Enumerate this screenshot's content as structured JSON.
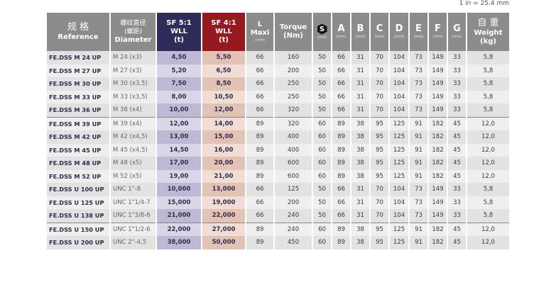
{
  "conversion_note": "1 in = 25.4 mm",
  "headers": {
    "reference_cn": "规 格",
    "reference": "Reference",
    "diameter_cn": "螺纹直径",
    "diameter_cn2": "(螺距)",
    "diameter": "Diameter",
    "sf5": [
      "SF 5:1",
      "WLL",
      "(t)"
    ],
    "sf4": [
      "SF 4:1",
      "WLL",
      "(t)"
    ],
    "l": "L",
    "l2": "Maxi",
    "mm": "(mm)",
    "torque": "Torque",
    "torque2": "(Nm)",
    "s": "S",
    "a": "A",
    "b": "B",
    "c": "C",
    "d": "D",
    "e": "E",
    "f": "F",
    "g": "G",
    "weight_cn": "自 重",
    "weight": "Weight",
    "weight2": "(kg)"
  },
  "colors": {
    "header": "#8c8c8c",
    "sf5": "#2e2d5a",
    "sf4": "#96191f"
  },
  "rows": [
    [
      "FE.DSS M 24 UP",
      "M 24 (x3)",
      "4,50",
      "5,50",
      "66",
      "160",
      "50",
      "66",
      "31",
      "70",
      "104",
      "73",
      "149",
      "33",
      "5,8"
    ],
    [
      "FE.DSS M 27 UP",
      "M 27 (x3)",
      "5,20",
      "6,50",
      "66",
      "200",
      "50",
      "66",
      "31",
      "70",
      "104",
      "73",
      "149",
      "33",
      "5,8"
    ],
    [
      "FE.DSS M 30 UP",
      "M 30 (x3,5)",
      "7,50",
      "8,50",
      "66",
      "250",
      "50",
      "66",
      "31",
      "70",
      "104",
      "73",
      "149",
      "33",
      "5,8"
    ],
    [
      "FE.DSS M 33 UP",
      "M 33 (x3,5)",
      "8,00",
      "10,50",
      "66",
      "250",
      "50",
      "66",
      "31",
      "70",
      "104",
      "73",
      "149",
      "33",
      "5,8"
    ],
    [
      "FE.DSS M 36 UP",
      "M 36 (x4)",
      "10,00",
      "12,00",
      "66",
      "320",
      "50",
      "66",
      "31",
      "70",
      "104",
      "73",
      "149",
      "33",
      "5,8"
    ],
    [
      "FE.DSS M 39 UP",
      "M 39 (x4)",
      "12,00",
      "14,00",
      "89",
      "320",
      "60",
      "89",
      "38",
      "95",
      "125",
      "91",
      "182",
      "45",
      "12,0"
    ],
    [
      "FE.DSS M 42 UP",
      "M 42 (x4,5)",
      "13,00",
      "15,00",
      "89",
      "400",
      "60",
      "89",
      "38",
      "95",
      "125",
      "91",
      "182",
      "45",
      "12,0"
    ],
    [
      "FE.DSS M 45 UP",
      "M 45 (x4,5)",
      "14,50",
      "16,00",
      "89",
      "400",
      "60",
      "89",
      "38",
      "95",
      "125",
      "91",
      "182",
      "45",
      "12,0"
    ],
    [
      "FE.DSS M 48 UP",
      "M 48 (x5)",
      "17,00",
      "20,00",
      "89",
      "600",
      "60",
      "89",
      "38",
      "95",
      "125",
      "91",
      "182",
      "45",
      "12,0"
    ],
    [
      "FE.DSS M 52 UP",
      "M 52 (x5)",
      "19,00",
      "21,00",
      "89",
      "600",
      "60",
      "89",
      "38",
      "95",
      "125",
      "91",
      "182",
      "45",
      "12,0"
    ],
    [
      "FE.DSS U 100 UP",
      "UNC 1\"-8",
      "10,000",
      "13,000",
      "66",
      "125",
      "50",
      "66",
      "31",
      "70",
      "104",
      "73",
      "149",
      "33",
      "5,8"
    ],
    [
      "FE.DSS U 125 UP",
      "UNC 1\"1/4-7",
      "15,000",
      "19,000",
      "66",
      "200",
      "50",
      "66",
      "31",
      "70",
      "104",
      "73",
      "149",
      "33",
      "5,8"
    ],
    [
      "FE.DSS U 138 UP",
      "UNC 1\"3/8-6",
      "21,000",
      "22,000",
      "66",
      "240",
      "50",
      "66",
      "31",
      "70",
      "104",
      "73",
      "149",
      "33",
      "5,8"
    ],
    [
      "FE.DSS U 150 UP",
      "UNC 1\"1/2-6",
      "22,000",
      "27,000",
      "89",
      "240",
      "60",
      "89",
      "38",
      "95",
      "125",
      "91",
      "182",
      "45",
      "12,0"
    ],
    [
      "FE.DSS U 200 UP",
      "UNC 2\"-4,5",
      "38,000",
      "50,000",
      "89",
      "450",
      "60",
      "89",
      "38",
      "95",
      "125",
      "91",
      "182",
      "45",
      "12,0"
    ]
  ]
}
